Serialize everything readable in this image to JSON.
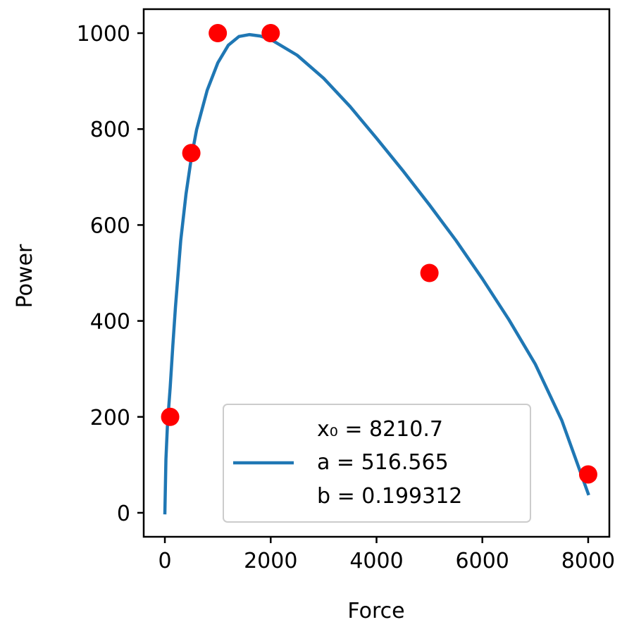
{
  "chart_data": {
    "type": "scatter",
    "xlabel": "Force",
    "ylabel": "Power",
    "xlim": [
      -400,
      8400
    ],
    "ylim": [
      -50,
      1050
    ],
    "x_ticks": [
      0,
      2000,
      4000,
      6000,
      8000
    ],
    "x_tick_labels": [
      "0",
      "2000",
      "4000",
      "6000",
      "8000"
    ],
    "y_ticks": [
      0,
      200,
      400,
      600,
      800,
      1000
    ],
    "y_tick_labels": [
      "0",
      "200",
      "400",
      "600",
      "800",
      "1000"
    ],
    "grid": false,
    "series": [
      {
        "kind": "scatter",
        "color": "#ff0000",
        "x": [
          100,
          500,
          1000,
          2000,
          5000,
          8000
        ],
        "y": [
          200,
          750,
          1000,
          1000,
          500,
          80
        ]
      },
      {
        "kind": "line",
        "color": "#1f77b4",
        "x": [
          0,
          20,
          50,
          100,
          150,
          200,
          300,
          400,
          500,
          600,
          800,
          1000,
          1200,
          1400,
          1600,
          1800,
          2000,
          2500,
          3000,
          3500,
          4000,
          4500,
          5000,
          5500,
          6000,
          6500,
          7000,
          7500,
          8000
        ],
        "y": [
          0,
          112,
          186,
          261,
          348,
          429,
          568,
          665,
          740,
          799,
          881,
          938,
          975,
          993,
          997,
          994,
          987,
          954,
          906,
          847,
          781,
          713,
          642,
          568,
          488,
          403,
          310,
          193,
          40
        ]
      }
    ],
    "legend": {
      "position": "lower-right",
      "lines": [
        "x₀ = 8210.7",
        "a = 516.565",
        "b = 0.199312"
      ]
    }
  }
}
